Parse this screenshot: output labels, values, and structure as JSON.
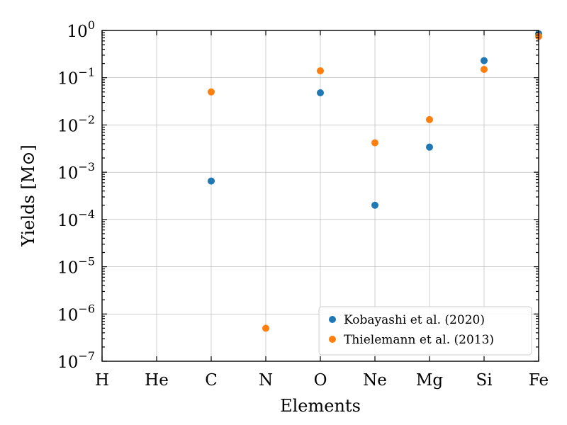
{
  "chart_data": {
    "type": "scatter",
    "title": "",
    "xlabel": "Elements",
    "ylabel": "Yields [M⊙]",
    "yscale": "log",
    "ylim": [
      1e-07,
      1
    ],
    "categories": [
      "H",
      "He",
      "C",
      "N",
      "O",
      "Ne",
      "Mg",
      "Si",
      "Fe"
    ],
    "y_tick_labels": [
      {
        "base": "10",
        "exp": "−7"
      },
      {
        "base": "10",
        "exp": "−6"
      },
      {
        "base": "10",
        "exp": "−5"
      },
      {
        "base": "10",
        "exp": "−4"
      },
      {
        "base": "10",
        "exp": "−3"
      },
      {
        "base": "10",
        "exp": "−2"
      },
      {
        "base": "10",
        "exp": "−1"
      },
      {
        "base": "10",
        "exp": "0"
      }
    ],
    "grid": true,
    "legend_position": "bottom-right",
    "series": [
      {
        "name": "Kobayashi et al. (2020)",
        "color": "#1f77b4",
        "values": [
          null,
          null,
          0.00065,
          null,
          0.048,
          0.0002,
          0.0034,
          0.23,
          0.85
        ]
      },
      {
        "name": "Thielemann et al. (2013)",
        "color": "#ff7f0e",
        "values": [
          null,
          null,
          0.05,
          5e-07,
          0.14,
          0.0042,
          0.013,
          0.15,
          0.75
        ]
      }
    ]
  }
}
